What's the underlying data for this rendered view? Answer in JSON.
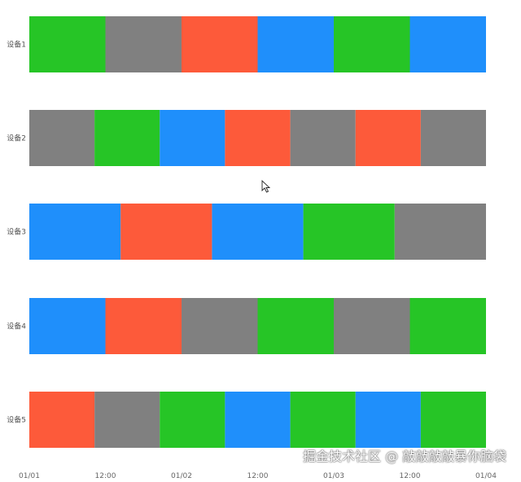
{
  "chart_data": {
    "type": "timeline",
    "x_ticks": [
      "01/01",
      "12:00",
      "01/02",
      "12:00",
      "01/03",
      "12:00",
      "01/04"
    ],
    "x_range": [
      "01/01 00:00",
      "01/04 00:00"
    ],
    "grid": false,
    "colors": {
      "green": "#26c526",
      "gray": "#808080",
      "red": "#fd5a3a",
      "blue": "#1f8ffb"
    },
    "rows": [
      {
        "label": "设备1",
        "segments": [
          [
            "01/01 00:00",
            "01/01 12:00",
            "green"
          ],
          [
            "01/01 12:00",
            "01/02 00:00",
            "gray"
          ],
          [
            "01/02 00:00",
            "01/02 12:00",
            "red"
          ],
          [
            "01/02 12:00",
            "01/03 00:00",
            "blue"
          ],
          [
            "01/03 00:00",
            "01/03 12:00",
            "green"
          ],
          [
            "01/03 12:00",
            "01/04 00:00",
            "blue"
          ]
        ]
      },
      {
        "label": "设备2",
        "segments": [
          [
            "01/01 00:00",
            "01/01 10:17",
            "gray"
          ],
          [
            "01/01 10:17",
            "01/01 20:34",
            "green"
          ],
          [
            "01/01 20:34",
            "01/02 06:51",
            "blue"
          ],
          [
            "01/02 06:51",
            "01/02 17:09",
            "red"
          ],
          [
            "01/02 17:09",
            "01/03 03:26",
            "gray"
          ],
          [
            "01/03 03:26",
            "01/03 13:43",
            "red"
          ],
          [
            "01/03 13:43",
            "01/04 00:00",
            "gray"
          ]
        ]
      },
      {
        "label": "设备3",
        "segments": [
          [
            "01/01 00:00",
            "01/01 14:24",
            "blue"
          ],
          [
            "01/01 14:24",
            "01/02 04:48",
            "red"
          ],
          [
            "01/02 04:48",
            "01/02 19:12",
            "blue"
          ],
          [
            "01/02 19:12",
            "01/03 09:36",
            "green"
          ],
          [
            "01/03 09:36",
            "01/04 00:00",
            "gray"
          ]
        ]
      },
      {
        "label": "设备4",
        "segments": [
          [
            "01/01 00:00",
            "01/01 12:00",
            "blue"
          ],
          [
            "01/01 12:00",
            "01/02 00:00",
            "red"
          ],
          [
            "01/02 00:00",
            "01/02 12:00",
            "gray"
          ],
          [
            "01/02 12:00",
            "01/03 00:00",
            "green"
          ],
          [
            "01/03 00:00",
            "01/03 12:00",
            "gray"
          ],
          [
            "01/03 12:00",
            "01/04 00:00",
            "green"
          ]
        ]
      },
      {
        "label": "设备5",
        "segments": [
          [
            "01/01 00:00",
            "01/01 10:17",
            "red"
          ],
          [
            "01/01 10:17",
            "01/01 20:34",
            "gray"
          ],
          [
            "01/01 20:34",
            "01/02 06:51",
            "green"
          ],
          [
            "01/02 06:51",
            "01/02 17:09",
            "blue"
          ],
          [
            "01/02 17:09",
            "01/03 03:26",
            "green"
          ],
          [
            "01/03 03:26",
            "01/03 13:43",
            "blue"
          ],
          [
            "01/03 13:43",
            "01/04 00:00",
            "green"
          ]
        ]
      }
    ]
  },
  "watermark": "掘金技术社区 @ 敲敲敲敲暴你脑袋"
}
